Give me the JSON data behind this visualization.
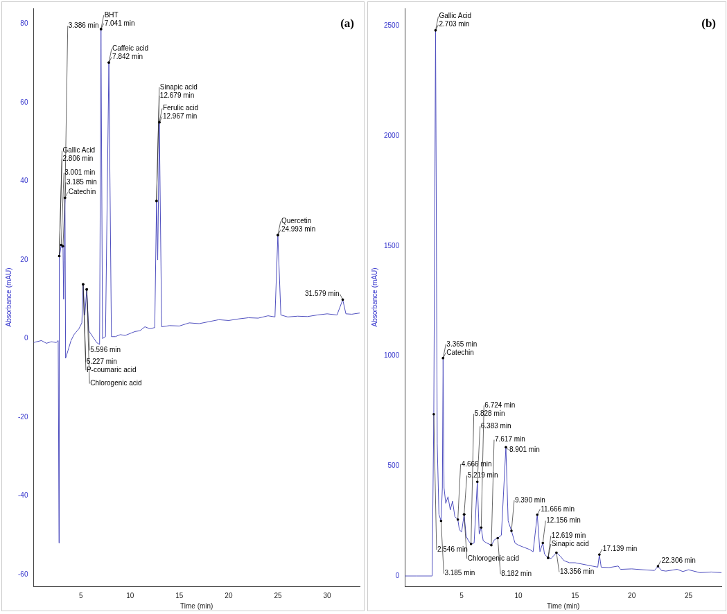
{
  "chart_data": [
    {
      "type": "line",
      "title": "(a)",
      "xlabel": "Time (min)",
      "ylabel": "Absorbance (mAU)",
      "xlim": [
        0.2,
        33.3
      ],
      "ylim": [
        -63,
        84
      ],
      "xticks": [
        5,
        10,
        15,
        20,
        25,
        30
      ],
      "yticks": [
        -60,
        -40,
        -20,
        0,
        20,
        40,
        60,
        80
      ],
      "grid": false,
      "legend": false,
      "marker": "none",
      "color": "#4f4fbf",
      "x": [
        0.2,
        1,
        1.5,
        2,
        2.5,
        2.7,
        2.78,
        2.806,
        2.9,
        3.001,
        3.1,
        3.185,
        3.25,
        3.3,
        3.386,
        3.45,
        3.7,
        4,
        4.3,
        4.8,
        5.1,
        5.227,
        5.4,
        5.596,
        5.8,
        6.2,
        6.6,
        6.9,
        7.041,
        7.2,
        7.5,
        7.842,
        8.1,
        8.5,
        9,
        9.5,
        10,
        10.5,
        11,
        11.5,
        12,
        12.5,
        12.679,
        12.8,
        12.967,
        13.2,
        14,
        15,
        16,
        17,
        18,
        19,
        20,
        21,
        22,
        23,
        24,
        24.7,
        24.993,
        25.3,
        26,
        27,
        28,
        29,
        30,
        31,
        31.579,
        31.9,
        32.5,
        33.3
      ],
      "values": [
        -1,
        -0.5,
        -1.2,
        -0.8,
        -1,
        -0.5,
        -52,
        21,
        22,
        23.8,
        23,
        23.5,
        10,
        20,
        35.8,
        -5,
        -3,
        -0.5,
        1,
        2.5,
        4,
        13.8,
        6,
        12.5,
        2,
        0.5,
        -1,
        -1.5,
        78.7,
        0,
        0.5,
        70.2,
        0.5,
        0.5,
        1,
        0.8,
        1.3,
        1.8,
        2,
        3,
        2.5,
        2.8,
        35,
        20,
        55,
        3,
        3.3,
        3.2,
        4,
        3.8,
        4.3,
        4.8,
        4.6,
        5,
        5.3,
        5.2,
        5.8,
        5.5,
        26.3,
        6,
        5.5,
        5.7,
        5.6,
        6,
        6.3,
        6,
        9.9,
        6.3,
        6.2,
        6.5
      ],
      "annotations": [
        {
          "text": "7.041 min",
          "x": 7.041,
          "y": 78.7
        },
        {
          "text": "BHT",
          "x": 7.041,
          "y": 78.7
        },
        {
          "text": "7.842 min",
          "x": 7.842,
          "y": 70.2
        },
        {
          "text": "Caffeic acid",
          "x": 7.842,
          "y": 70.2
        },
        {
          "text": "12.967 min",
          "x": 12.967,
          "y": 55
        },
        {
          "text": "Ferulic acid",
          "x": 12.967,
          "y": 55
        },
        {
          "text": "12.679 min",
          "x": 12.679,
          "y": 35
        },
        {
          "text": "Sinapic acid",
          "x": 12.679,
          "y": 35
        },
        {
          "text": "3.386 min",
          "x": 3.386,
          "y": 35.8
        },
        {
          "text": "Catechin",
          "x": 3.386,
          "y": 35.8
        },
        {
          "text": "24.993 min",
          "x": 24.993,
          "y": 26.3
        },
        {
          "text": "Quercetin",
          "x": 24.993,
          "y": 26.3
        },
        {
          "text": "3.185 min",
          "x": 3.185,
          "y": 23.5
        },
        {
          "text": "3.001 min",
          "x": 3.001,
          "y": 23.8
        },
        {
          "text": "2.806 min",
          "x": 2.806,
          "y": 21
        },
        {
          "text": "Gallic Acid",
          "x": 2.806,
          "y": 21
        },
        {
          "text": "5.596 min",
          "x": 5.596,
          "y": 12.5
        },
        {
          "text": "5.227 min",
          "x": 5.227,
          "y": 13.8
        },
        {
          "text": "P-coumaric acid",
          "x": 5.227,
          "y": 13.8
        },
        {
          "text": "Chlorogenic acid",
          "x": 5.596,
          "y": 12.5
        },
        {
          "text": "31.579 min",
          "x": 31.579,
          "y": 9.9
        }
      ]
    },
    {
      "type": "line",
      "title": "(b)",
      "xlabel": "Time (min)",
      "ylabel": "Absorbance (mAU)",
      "xlim": [
        0,
        27.9
      ],
      "ylim": [
        -47,
        2580
      ],
      "xticks": [
        5,
        10,
        15,
        20,
        25
      ],
      "yticks": [
        0,
        500,
        1000,
        1500,
        2000,
        2500
      ],
      "grid": false,
      "legend": false,
      "marker": "none",
      "color": "#4f4fbf",
      "x": [
        0,
        1,
        2,
        2.4,
        2.546,
        2.703,
        2.85,
        3,
        3.185,
        3.3,
        3.365,
        3.45,
        3.6,
        3.8,
        4,
        4.2,
        4.4,
        4.666,
        4.8,
        5,
        5.219,
        5.4,
        5.6,
        5.828,
        6.1,
        6.383,
        6.55,
        6.724,
        6.9,
        7.2,
        7.617,
        7.9,
        8.182,
        8.5,
        8.901,
        9.1,
        9.39,
        9.7,
        10,
        10.5,
        11,
        11.3,
        11.666,
        11.9,
        12.156,
        12.3,
        12.619,
        12.9,
        13.356,
        13.7,
        14,
        14.5,
        15,
        15.5,
        16,
        16.5,
        17,
        17.139,
        17.3,
        18,
        18.8,
        19,
        20,
        21,
        22,
        22.306,
        22.6,
        23,
        24,
        24.5,
        25,
        26,
        27,
        27.9
      ],
      "values": [
        0,
        0,
        0,
        0,
        735,
        2480,
        600,
        280,
        250,
        400,
        990,
        400,
        330,
        360,
        300,
        340,
        270,
        256,
        210,
        200,
        280,
        180,
        160,
        145,
        150,
        428,
        190,
        220,
        160,
        150,
        140,
        165,
        172,
        185,
        585,
        250,
        205,
        150,
        140,
        130,
        120,
        110,
        278,
        110,
        150,
        100,
        82,
        80,
        106,
        90,
        70,
        60,
        60,
        55,
        50,
        45,
        40,
        97,
        40,
        38,
        45,
        30,
        32,
        28,
        25,
        44,
        25,
        22,
        30,
        20,
        28,
        15,
        18,
        15
      ],
      "annotations": [
        {
          "text": "2.703 min",
          "x": 2.703,
          "y": 2480
        },
        {
          "text": "Gallic Acid",
          "x": 2.703,
          "y": 2480
        },
        {
          "text": "Catechin",
          "x": 3.365,
          "y": 990
        },
        {
          "text": "Chlorogenic acid",
          "x": 5.219,
          "y": 280
        },
        {
          "text": "2.546 min",
          "x": 2.546,
          "y": 735
        },
        {
          "text": "Sinapic acid",
          "x": 12.619,
          "y": 82
        },
        {
          "text": "8.182 min",
          "x": 8.182,
          "y": 172
        },
        {
          "text": "3.365 min",
          "x": 3.365,
          "y": 990
        },
        {
          "text": "11.666 min",
          "x": 11.666,
          "y": 278
        },
        {
          "text": "12.619 min",
          "x": 12.619,
          "y": 82
        },
        {
          "text": "12.156 min",
          "x": 12.156,
          "y": 150
        },
        {
          "text": "5.219 min",
          "x": 5.219,
          "y": 280
        },
        {
          "text": "4.666 min",
          "x": 4.666,
          "y": 256
        },
        {
          "text": "7.617 min",
          "x": 7.617,
          "y": 140
        },
        {
          "text": "13.356 min",
          "x": 13.356,
          "y": 106
        },
        {
          "text": "8.901 min",
          "x": 8.901,
          "y": 585
        },
        {
          "text": "6.383 min",
          "x": 6.383,
          "y": 428
        },
        {
          "text": "9.390 min",
          "x": 9.39,
          "y": 205
        },
        {
          "text": "3.185 min",
          "x": 3.185,
          "y": 250
        },
        {
          "text": "5.828 min",
          "x": 5.828,
          "y": 145
        },
        {
          "text": "6.724 min",
          "x": 6.724,
          "y": 220
        },
        {
          "text": "17.139 min",
          "x": 17.139,
          "y": 97
        },
        {
          "text": "22.306 min",
          "x": 22.306,
          "y": 44
        }
      ]
    }
  ]
}
